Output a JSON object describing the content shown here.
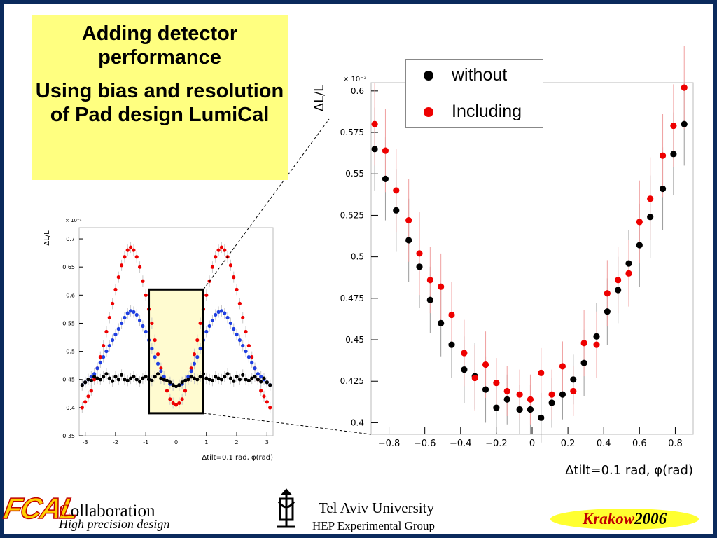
{
  "note": {
    "line1": "Adding detector performance",
    "line2": "Using bias and resolution of Pad design LumiCal",
    "bg": "#ffff80"
  },
  "footer": {
    "logo_text": "FCAL",
    "collab_first": "C",
    "collab_rest": "ollaboration",
    "subtitle": "High precision design",
    "university": "Tel Aviv University",
    "group": "HEP Experimental Group",
    "event_city": "Krakow",
    "event_year": "2006",
    "emblem_icon": "menorah-icon"
  },
  "colors": {
    "black": "#000000",
    "red": "#ee0000",
    "blue": "#1f3fe0",
    "highlight": "#fffbd0",
    "border": "#0a2a5c"
  },
  "chart_data": [
    {
      "type": "scatter",
      "xlabel": "Δtilt=0.1 rad, φ(rad)",
      "ylabel": "ΔL/L",
      "y_multiplier": "× 10⁻²",
      "xlim": [
        -3.2,
        3.2
      ],
      "ylim": [
        0.35,
        0.72
      ],
      "xticks": [
        -3,
        -2,
        -1,
        0,
        1,
        2,
        3
      ],
      "yticks": [
        0.35,
        0.4,
        0.45,
        0.5,
        0.55,
        0.6,
        0.65,
        0.7
      ],
      "series": [
        {
          "color": "red",
          "x_start": -3.1,
          "x_step": 0.1,
          "y": [
            0.4,
            0.41,
            0.42,
            0.43,
            0.45,
            0.47,
            0.49,
            0.51,
            0.535,
            0.56,
            0.585,
            0.61,
            0.632,
            0.653,
            0.668,
            0.68,
            0.685,
            0.68,
            0.668,
            0.65,
            0.625,
            0.6,
            0.575,
            0.55,
            0.52,
            0.495,
            0.47,
            0.45,
            0.43,
            0.415,
            0.408,
            0.405,
            0.408,
            0.415,
            0.43,
            0.45,
            0.47,
            0.495,
            0.52,
            0.55,
            0.575,
            0.6,
            0.625,
            0.65,
            0.668,
            0.68,
            0.685,
            0.68,
            0.668,
            0.653,
            0.632,
            0.61,
            0.585,
            0.56,
            0.535,
            0.51,
            0.49,
            0.47,
            0.45,
            0.43,
            0.42,
            0.41,
            0.4
          ]
        },
        {
          "color": "blue",
          "x_start": -3.1,
          "x_step": 0.1,
          "y": [
            0.44,
            0.445,
            0.45,
            0.455,
            0.46,
            0.47,
            0.48,
            0.49,
            0.5,
            0.51,
            0.52,
            0.53,
            0.54,
            0.55,
            0.56,
            0.568,
            0.572,
            0.57,
            0.565,
            0.555,
            0.545,
            0.535,
            0.52,
            0.505,
            0.49,
            0.478,
            0.465,
            0.455,
            0.448,
            0.442,
            0.44,
            0.438,
            0.44,
            0.442,
            0.448,
            0.455,
            0.465,
            0.478,
            0.49,
            0.505,
            0.52,
            0.535,
            0.545,
            0.555,
            0.565,
            0.57,
            0.572,
            0.568,
            0.56,
            0.55,
            0.54,
            0.53,
            0.52,
            0.51,
            0.5,
            0.49,
            0.48,
            0.47,
            0.46,
            0.455,
            0.45,
            0.445,
            0.44
          ]
        },
        {
          "color": "black",
          "x_start": -3.1,
          "x_step": 0.1,
          "y": [
            0.44,
            0.445,
            0.45,
            0.448,
            0.455,
            0.452,
            0.45,
            0.455,
            0.46,
            0.452,
            0.447,
            0.455,
            0.45,
            0.458,
            0.45,
            0.448,
            0.452,
            0.455,
            0.45,
            0.446,
            0.452,
            0.455,
            0.45,
            0.448,
            0.455,
            0.46,
            0.452,
            0.45,
            0.448,
            0.445,
            0.44,
            0.438,
            0.44,
            0.445,
            0.448,
            0.45,
            0.455,
            0.452,
            0.45,
            0.455,
            0.46,
            0.452,
            0.45,
            0.448,
            0.455,
            0.452,
            0.45,
            0.455,
            0.46,
            0.452,
            0.447,
            0.455,
            0.45,
            0.458,
            0.45,
            0.448,
            0.452,
            0.455,
            0.45,
            0.446,
            0.452,
            0.445,
            0.44
          ]
        }
      ],
      "zoom_box": {
        "x": [
          -0.9,
          0.9
        ],
        "y": [
          0.39,
          0.61
        ]
      }
    },
    {
      "type": "scatter",
      "xlabel": "Δtilt=0.1 rad, φ(rad)",
      "ylabel": "ΔL/L",
      "y_multiplier": "× 10⁻²",
      "xlim": [
        -0.9,
        0.9
      ],
      "ylim": [
        0.393,
        0.605
      ],
      "xticks": [
        -0.8,
        -0.6,
        -0.4,
        -0.2,
        0,
        0.2,
        0.4,
        0.6,
        0.8
      ],
      "xtick_labels": [
        "−0.8",
        "−0.6",
        "−0.4",
        "−0.2",
        "0",
        "0.2",
        "0.4",
        "0.6",
        "0.8"
      ],
      "yticks": [
        0.4,
        0.425,
        0.45,
        0.475,
        0.5,
        0.525,
        0.55,
        0.575,
        0.6
      ],
      "ytick_labels": [
        "0.4",
        "0.425",
        "0.45",
        "0.475",
        "0.5",
        "0.525",
        "0.55",
        "0.575",
        "0.6"
      ],
      "legend": {
        "position": "top-right",
        "entries": [
          {
            "label": "without",
            "color": "black"
          },
          {
            "label": "Including",
            "color": "red"
          }
        ]
      },
      "series": [
        {
          "label": "without",
          "color": "black",
          "x": [
            -0.88,
            -0.82,
            -0.76,
            -0.69,
            -0.63,
            -0.57,
            -0.51,
            -0.45,
            -0.38,
            -0.32,
            -0.26,
            -0.2,
            -0.14,
            -0.07,
            -0.01,
            0.05,
            0.11,
            0.17,
            0.23,
            0.29,
            0.36,
            0.42,
            0.48,
            0.54,
            0.6,
            0.66,
            0.73,
            0.79,
            0.85
          ],
          "y": [
            0.565,
            0.547,
            0.528,
            0.51,
            0.494,
            0.474,
            0.46,
            0.447,
            0.432,
            0.428,
            0.42,
            0.409,
            0.414,
            0.408,
            0.408,
            0.403,
            0.412,
            0.417,
            0.426,
            0.436,
            0.452,
            0.467,
            0.48,
            0.496,
            0.507,
            0.524,
            0.541,
            0.562,
            0.58
          ],
          "err": [
            0.025,
            0.025,
            0.025,
            0.025,
            0.025,
            0.02,
            0.02,
            0.02,
            0.02,
            0.02,
            0.02,
            0.015,
            0.015,
            0.015,
            0.015,
            0.015,
            0.015,
            0.015,
            0.015,
            0.02,
            0.02,
            0.02,
            0.02,
            0.02,
            0.025,
            0.025,
            0.025,
            0.025,
            0.025
          ]
        },
        {
          "label": "Including",
          "color": "red",
          "x": [
            -0.88,
            -0.82,
            -0.76,
            -0.69,
            -0.63,
            -0.57,
            -0.51,
            -0.45,
            -0.38,
            -0.32,
            -0.26,
            -0.2,
            -0.14,
            -0.07,
            -0.01,
            0.05,
            0.11,
            0.17,
            0.23,
            0.29,
            0.36,
            0.42,
            0.48,
            0.54,
            0.6,
            0.66,
            0.73,
            0.79,
            0.85
          ],
          "y": [
            0.58,
            0.564,
            0.54,
            0.522,
            0.502,
            0.486,
            0.482,
            0.465,
            0.442,
            0.427,
            0.435,
            0.424,
            0.419,
            0.417,
            0.414,
            0.43,
            0.417,
            0.434,
            0.419,
            0.448,
            0.447,
            0.478,
            0.486,
            0.49,
            0.521,
            0.535,
            0.561,
            0.579,
            0.602
          ],
          "err": [
            0.025,
            0.025,
            0.025,
            0.025,
            0.025,
            0.02,
            0.02,
            0.02,
            0.02,
            0.02,
            0.02,
            0.015,
            0.015,
            0.015,
            0.015,
            0.015,
            0.015,
            0.015,
            0.015,
            0.02,
            0.02,
            0.02,
            0.02,
            0.02,
            0.025,
            0.025,
            0.025,
            0.025,
            0.025
          ]
        }
      ]
    }
  ]
}
